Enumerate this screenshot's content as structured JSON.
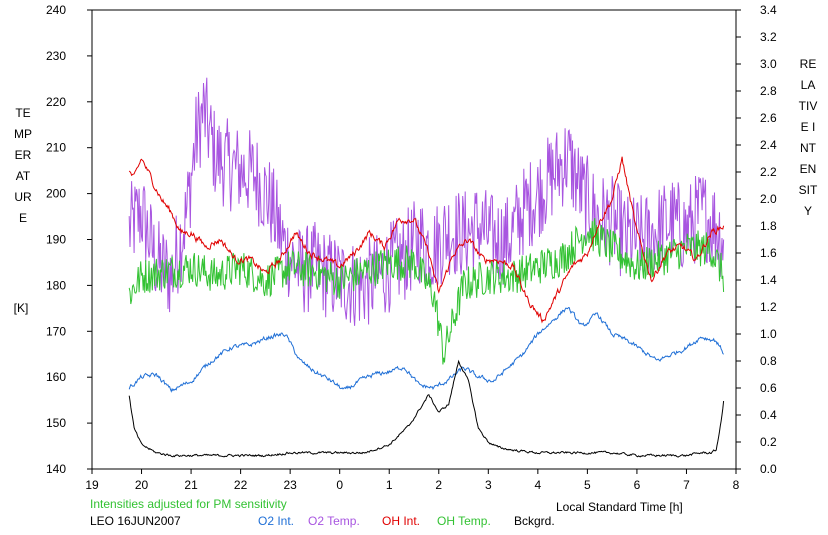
{
  "chart_data": {
    "type": "line",
    "title": "",
    "xlabel": "Local Standard Time [h]",
    "ylabel_left": "TEMPERATURE",
    "ylabel_left_unit": "[K]",
    "ylabel_right": "RELATIVE INTENSITY",
    "x_range": [
      19,
      8
    ],
    "x_ticks": [
      "19",
      "20",
      "21",
      "22",
      "23",
      "0",
      "1",
      "2",
      "3",
      "4",
      "5",
      "6",
      "7",
      "8"
    ],
    "y_left_range": [
      140,
      240
    ],
    "y_left_ticks": [
      "140",
      "150",
      "160",
      "170",
      "180",
      "190",
      "200",
      "210",
      "220",
      "230",
      "240"
    ],
    "y_right_range": [
      0.0,
      3.4
    ],
    "y_right_ticks": [
      "0.0",
      "0.2",
      "0.4",
      "0.6",
      "0.8",
      "1.0",
      "1.2",
      "1.4",
      "1.6",
      "1.8",
      "2.0",
      "2.2",
      "2.4",
      "2.6",
      "2.8",
      "3.0",
      "3.2",
      "3.4"
    ],
    "grid": false,
    "note": "Intensities adjusted for PM sensitivity",
    "station": "LEO 16JUN2007",
    "legend": [
      {
        "label": "O2 Int.",
        "color": "#1f6fd6"
      },
      {
        "label": "O2 Temp.",
        "color": "#a855e0"
      },
      {
        "label": "OH Int.",
        "color": "#e00000"
      },
      {
        "label": "OH Temp.",
        "color": "#33c233"
      },
      {
        "label": "Bckgrd.",
        "color": "#000000"
      }
    ],
    "series": [
      {
        "name": "O2 Temp.",
        "axis": "left",
        "color": "#a855e0",
        "noise": 10,
        "x": [
          19.75,
          20.0,
          20.3,
          20.6,
          20.9,
          21.1,
          21.25,
          21.5,
          21.8,
          22.0,
          22.3,
          22.6,
          22.9,
          23.2,
          23.5,
          23.8,
          24.1,
          24.4,
          24.7,
          25.0,
          25.3,
          25.6,
          25.9,
          26.2,
          26.5,
          26.8,
          27.1,
          27.4,
          27.7,
          28.0,
          28.3,
          28.6,
          28.9,
          29.2,
          29.5,
          29.8,
          30.1,
          30.4,
          30.7,
          31.0,
          31.3,
          31.6,
          31.75
        ],
        "y": [
          192,
          196,
          185,
          182,
          195,
          212,
          218,
          208,
          206,
          205,
          204,
          198,
          188,
          183,
          184,
          182,
          181,
          180,
          181,
          184,
          186,
          190,
          188,
          192,
          191,
          193,
          190,
          190,
          196,
          200,
          204,
          208,
          200,
          195,
          194,
          190,
          190,
          192,
          194,
          192,
          196,
          193,
          190
        ]
      },
      {
        "name": "OH Temp.",
        "axis": "left",
        "color": "#33c233",
        "noise": 4,
        "x": [
          19.75,
          20.0,
          20.5,
          21.0,
          21.5,
          22.0,
          22.5,
          23.0,
          23.5,
          24.0,
          24.5,
          25.0,
          25.5,
          25.9,
          26.1,
          26.5,
          27.0,
          27.5,
          28.0,
          28.5,
          29.0,
          29.5,
          30.0,
          30.5,
          31.0,
          31.5,
          31.75
        ],
        "y": [
          178,
          182,
          183,
          184,
          182,
          184,
          181,
          184,
          183,
          181,
          183,
          185,
          185,
          178,
          165,
          180,
          182,
          182,
          184,
          186,
          192,
          188,
          184,
          186,
          188,
          188,
          182
        ]
      },
      {
        "name": "OH Int.",
        "axis": "right",
        "color": "#e00000",
        "noise": 0.03,
        "x": [
          19.75,
          19.85,
          20.0,
          20.2,
          20.4,
          20.6,
          20.8,
          21.0,
          21.3,
          21.6,
          21.9,
          22.2,
          22.5,
          22.8,
          23.1,
          23.4,
          23.7,
          24.0,
          24.3,
          24.6,
          24.9,
          25.2,
          25.5,
          25.8,
          26.0,
          26.3,
          26.6,
          26.9,
          27.2,
          27.5,
          27.8,
          28.1,
          28.4,
          28.7,
          29.0,
          29.2,
          29.5,
          29.7,
          30.0,
          30.3,
          30.6,
          30.9,
          31.2,
          31.5,
          31.75
        ],
        "y": [
          2.2,
          2.15,
          2.3,
          2.15,
          2.0,
          1.9,
          1.75,
          1.75,
          1.65,
          1.7,
          1.55,
          1.55,
          1.45,
          1.55,
          1.75,
          1.6,
          1.55,
          1.5,
          1.6,
          1.75,
          1.65,
          1.85,
          1.85,
          1.6,
          1.3,
          1.6,
          1.7,
          1.55,
          1.55,
          1.5,
          1.25,
          1.1,
          1.3,
          1.5,
          1.6,
          1.8,
          2.0,
          2.3,
          1.75,
          1.4,
          1.6,
          1.65,
          1.55,
          1.75,
          1.8
        ]
      },
      {
        "name": "O2 Int.",
        "axis": "right",
        "color": "#1f6fd6",
        "noise": 0.02,
        "x": [
          19.75,
          20.0,
          20.3,
          20.6,
          21.0,
          21.4,
          21.8,
          22.2,
          22.6,
          22.9,
          23.2,
          23.5,
          23.8,
          24.1,
          24.4,
          24.7,
          25.0,
          25.3,
          25.6,
          25.9,
          26.2,
          26.5,
          26.8,
          27.1,
          27.4,
          27.7,
          28.0,
          28.3,
          28.6,
          28.9,
          29.2,
          29.5,
          29.8,
          30.1,
          30.4,
          30.7,
          31.0,
          31.3,
          31.6,
          31.75
        ],
        "y": [
          0.6,
          0.68,
          0.7,
          0.58,
          0.65,
          0.8,
          0.9,
          0.92,
          0.98,
          1.0,
          0.8,
          0.72,
          0.66,
          0.58,
          0.65,
          0.7,
          0.72,
          0.76,
          0.62,
          0.6,
          0.66,
          0.75,
          0.68,
          0.65,
          0.75,
          0.85,
          1.0,
          1.1,
          1.2,
          1.05,
          1.15,
          1.0,
          0.95,
          0.88,
          0.8,
          0.85,
          0.9,
          0.98,
          0.95,
          0.86
        ]
      },
      {
        "name": "Bckgrd.",
        "axis": "right",
        "color": "#000000",
        "noise": 0.01,
        "x": [
          19.75,
          19.85,
          20.0,
          20.3,
          20.6,
          21.0,
          21.5,
          22.0,
          22.5,
          23.0,
          23.5,
          24.0,
          24.5,
          25.0,
          25.4,
          25.8,
          26.0,
          26.2,
          26.4,
          26.6,
          26.8,
          27.0,
          27.2,
          27.5,
          28.0,
          28.5,
          29.0,
          29.5,
          30.0,
          30.5,
          31.0,
          31.3,
          31.5,
          31.6,
          31.7,
          31.75
        ],
        "y": [
          0.54,
          0.3,
          0.18,
          0.12,
          0.1,
          0.1,
          0.1,
          0.1,
          0.1,
          0.12,
          0.12,
          0.12,
          0.12,
          0.18,
          0.32,
          0.55,
          0.42,
          0.48,
          0.8,
          0.65,
          0.3,
          0.2,
          0.16,
          0.14,
          0.12,
          0.12,
          0.12,
          0.12,
          0.1,
          0.1,
          0.1,
          0.12,
          0.12,
          0.14,
          0.35,
          0.5
        ]
      }
    ]
  }
}
